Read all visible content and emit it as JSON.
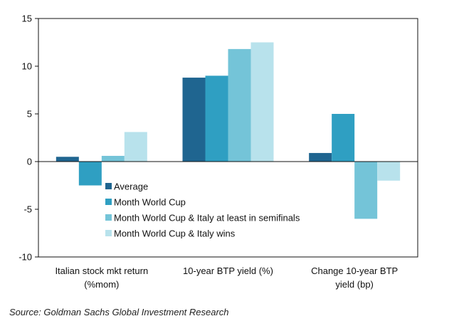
{
  "chart_data": {
    "type": "bar",
    "categories": [
      [
        "Italian stock mkt return",
        "(%mom)"
      ],
      [
        "10-year  BTP yield (%)"
      ],
      [
        "Change  10-year  BTP",
        "yield (bp)"
      ]
    ],
    "series": [
      {
        "name": "Average",
        "color": "#1f6590",
        "values": [
          0.5,
          8.8,
          0.9
        ]
      },
      {
        "name": "Month World Cup",
        "color": "#2f9fc2",
        "values": [
          -2.5,
          9.0,
          5.0
        ]
      },
      {
        "name": "Month World Cup & Italy at least in semifinals",
        "color": "#74c4d8",
        "values": [
          0.6,
          11.8,
          -6.0
        ]
      },
      {
        "name": "Month World Cup & Italy wins",
        "color": "#b8e2ec",
        "values": [
          3.1,
          12.5,
          -2.0
        ]
      }
    ],
    "ylim": [
      -10,
      15
    ],
    "yticks": [
      -10,
      -5,
      0,
      5,
      10,
      15
    ],
    "ytick_labels": [
      "-10",
      "-5",
      "0",
      "5",
      "10",
      "15"
    ],
    "grid": false,
    "legend": "lower-left inside plot"
  },
  "source": "Source: Goldman Sachs Global Investment Research"
}
